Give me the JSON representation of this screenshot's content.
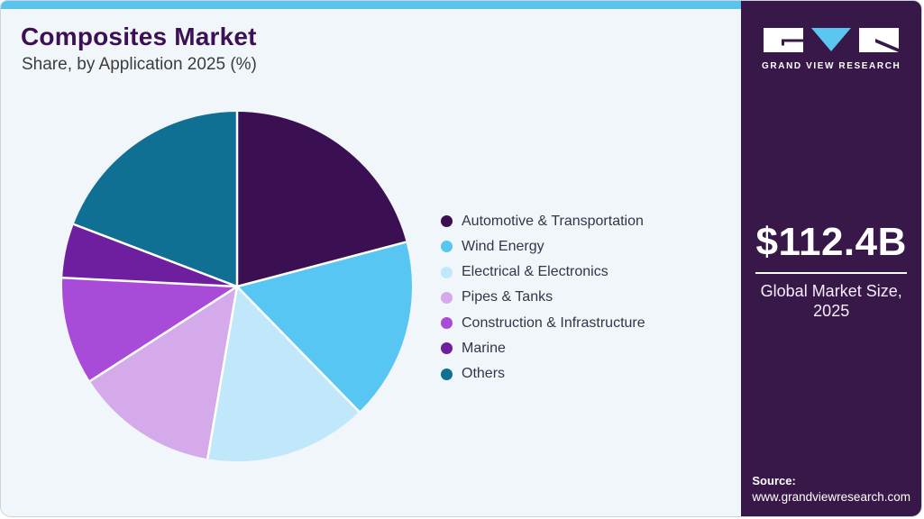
{
  "header": {
    "title": "Composites Market",
    "subtitle": "Share, by Application 2025 (%)"
  },
  "chart_data": {
    "type": "pie",
    "title": "Composites Market Share, by Application 2025 (%)",
    "start_angle_deg": 0,
    "direction": "clockwise",
    "legend_position": "right",
    "note": "values estimated from slice angles; no numeric labels shown",
    "slices": [
      {
        "label": "Automotive & Transportation",
        "value": 20.9,
        "color": "#3a1053"
      },
      {
        "label": "Wind Energy",
        "value": 16.8,
        "color": "#58c6f2"
      },
      {
        "label": "Electrical & Electronics",
        "value": 15.0,
        "color": "#c0e8fa"
      },
      {
        "label": "Pipes & Tanks",
        "value": 13.2,
        "color": "#d5aaeb"
      },
      {
        "label": "Construction & Infrastructure",
        "value": 9.9,
        "color": "#a84bd8"
      },
      {
        "label": "Marine",
        "value": 5.0,
        "color": "#6e1f9f"
      },
      {
        "label": "Others",
        "value": 19.2,
        "color": "#0f7093"
      }
    ]
  },
  "sidebar": {
    "logo_text": "GRAND VIEW RESEARCH",
    "market_size": "$112.4B",
    "caption_line1": "Global Market Size,",
    "caption_line2": "2025",
    "source_label": "Source:",
    "source_url": "www.grandviewresearch.com"
  },
  "colors": {
    "top_accent": "#5bc4ec",
    "card_bg": "#f1f6fa",
    "sidebar_bg": "#371849",
    "title_color": "#3d1055",
    "logo_v_blue": "#5bc6f0"
  }
}
